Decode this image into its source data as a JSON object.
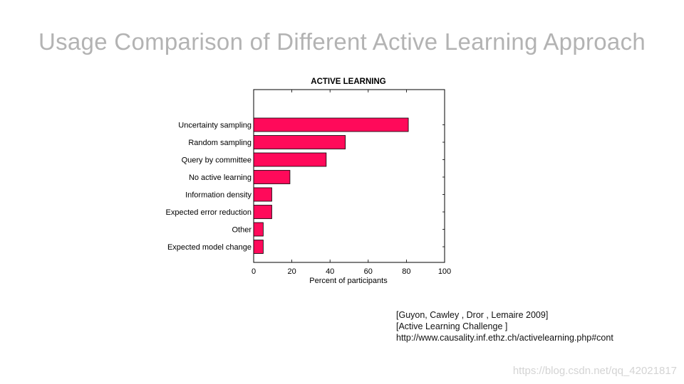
{
  "slide": {
    "title": "Usage Comparison of Different Active Learning Approach"
  },
  "chart_data": {
    "type": "bar",
    "orientation": "horizontal",
    "title": "ACTIVE LEARNING",
    "xlabel": "Percent of participants",
    "ylabel": "",
    "xlim": [
      0,
      100
    ],
    "xticks": [
      0,
      20,
      40,
      60,
      80,
      100
    ],
    "grid": false,
    "bar_color": "#ff0a5a",
    "categories": [
      "Uncertainty sampling",
      "Random sampling",
      "Query by committee",
      "No active learning",
      "Information density",
      "Expected error reduction",
      "Other",
      "Expected model change"
    ],
    "values": [
      81,
      48,
      38,
      19,
      9.5,
      9.5,
      5,
      5
    ]
  },
  "reference": {
    "line1": "[Guyon, Cawley , Dror , Lemaire 2009]",
    "line2": "[Active Learning  Challenge ]",
    "line3": "http://www.causality.inf.ethz.ch/activelearning.php#cont"
  },
  "watermark": "https://blog.csdn.net/qq_42021817"
}
